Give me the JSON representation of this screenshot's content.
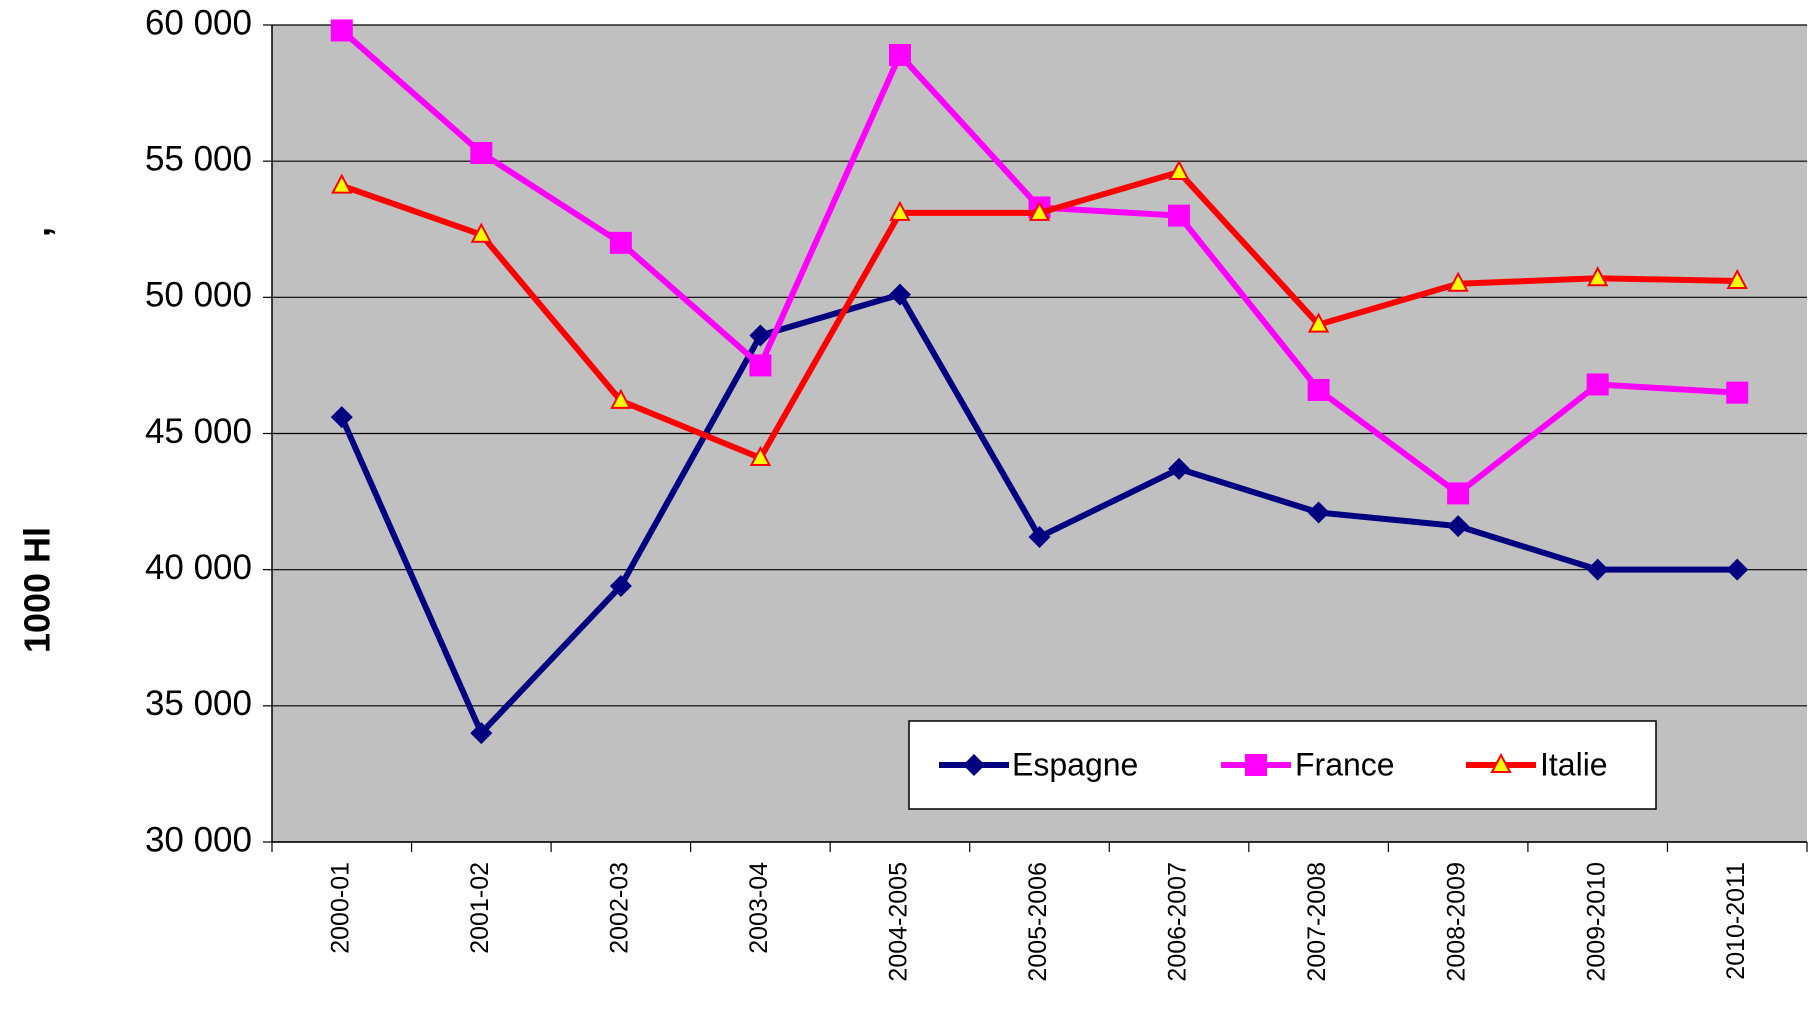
{
  "chart_data": {
    "type": "line",
    "y_label": "1000 Hl",
    "annotations": [
      ","
    ],
    "categories": [
      "2000-01",
      "2001-02",
      "2002-03",
      "2003-04",
      "2004-2005",
      "2005-2006",
      "2006-2007",
      "2007-2008",
      "2008-2009",
      "2009-2010",
      "2010-2011"
    ],
    "series": [
      {
        "name": "Espagne",
        "color": "#000080",
        "marker": "diamond",
        "values": [
          45600,
          34000,
          39400,
          48600,
          50100,
          41200,
          43700,
          42100,
          41600,
          40000,
          40000
        ]
      },
      {
        "name": "France",
        "color": "#ff00ff",
        "marker": "square",
        "values": [
          59800,
          55300,
          52000,
          47500,
          58900,
          53300,
          53000,
          46600,
          42800,
          46800,
          46500
        ]
      },
      {
        "name": "Italie",
        "color": "#ff0000",
        "marker": "triangle",
        "values": [
          54100,
          52300,
          46200,
          44100,
          53100,
          53100,
          54600,
          49000,
          50500,
          50700,
          50600
        ]
      }
    ],
    "ylim": [
      30000,
      60000
    ],
    "yticks": [
      {
        "value": 30000,
        "label": "30 000"
      },
      {
        "value": 35000,
        "label": "35 000"
      },
      {
        "value": 40000,
        "label": "40 000"
      },
      {
        "value": 45000,
        "label": "45 000"
      },
      {
        "value": 50000,
        "label": "50 000"
      },
      {
        "value": 55000,
        "label": "55 000"
      },
      {
        "value": 60000,
        "label": "60 000"
      }
    ],
    "grid": true,
    "legend": "bottom-right",
    "background": "#c0c0c0"
  }
}
